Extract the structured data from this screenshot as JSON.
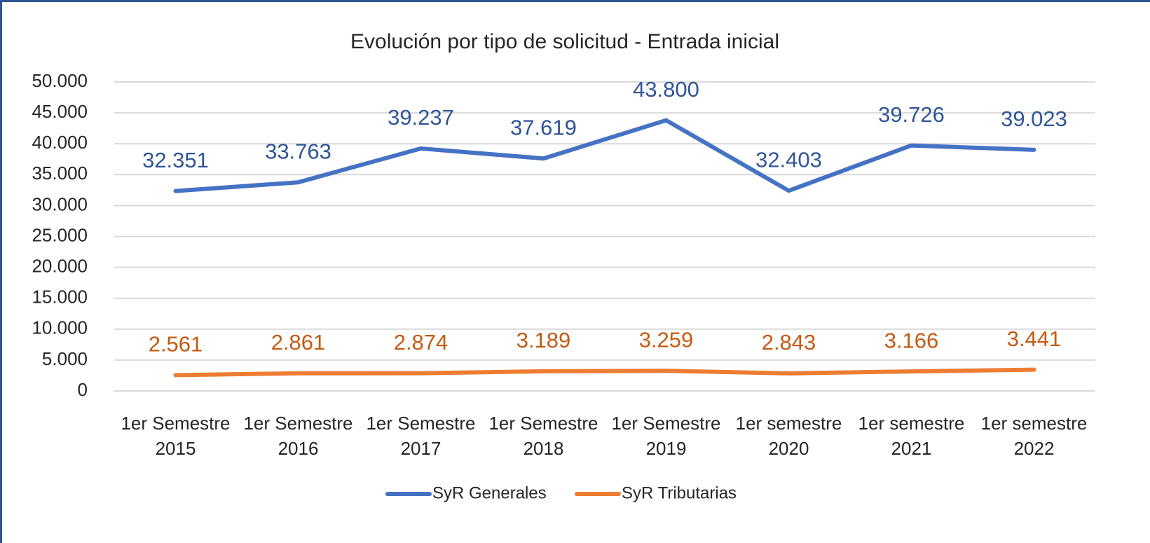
{
  "chart_data": {
    "type": "line",
    "title": "Evolución por tipo de solicitud - Entrada inicial",
    "categories": [
      "1er Semestre 2015",
      "1er Semestre 2016",
      "1er Semestre 2017",
      "1er Semestre 2018",
      "1er Semestre 2019",
      "1er semestre 2020",
      "1er semestre 2021",
      "1er semestre 2022"
    ],
    "series": [
      {
        "name": "SyR Generales",
        "color": "#4472c4",
        "values": [
          32351,
          33763,
          39237,
          37619,
          43800,
          32403,
          39726,
          39023
        ],
        "value_labels": [
          "32.351",
          "33.763",
          "39.237",
          "37.619",
          "43.800",
          "32.403",
          "39.726",
          "39.023"
        ]
      },
      {
        "name": "SyR Tributarias",
        "color": "#ed7d31",
        "values": [
          2561,
          2861,
          2874,
          3189,
          3259,
          2843,
          3166,
          3441
        ],
        "value_labels": [
          "2.561",
          "2.861",
          "2.874",
          "3.189",
          "3.259",
          "2.843",
          "3.166",
          "3.441"
        ]
      }
    ],
    "ylim": [
      0,
      50000
    ],
    "yticks": [
      0,
      {
        "value": 5000,
        "label": "5.000"
      },
      {
        "value": 10000,
        "label": "10.000"
      },
      {
        "value": 15000,
        "label": "15.000"
      },
      {
        "value": 20000,
        "label": "20.000"
      },
      {
        "value": 25000,
        "label": "25.000"
      },
      {
        "value": 30000,
        "label": "30.000"
      },
      {
        "value": 35000,
        "label": "35.000"
      },
      {
        "value": 40000,
        "label": "40.000"
      },
      {
        "value": 45000,
        "label": "45.000"
      },
      {
        "value": 50000,
        "label": "50.000"
      }
    ],
    "grid": true,
    "legend": "bottom"
  }
}
